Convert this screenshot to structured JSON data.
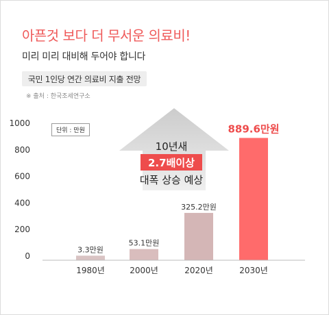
{
  "header": {
    "headline": "아픈것 보다 더 무서운 의료비!",
    "subline": "미리 미리 대비해 두어야 합니다",
    "pill_label": "국민 1인당 연간 의료비 지출 전망",
    "source": "※ 출처 : 한국조세연구소"
  },
  "callout": {
    "line1": "10년새",
    "highlight": "2.7배이상",
    "line3": "대폭 상승 예상"
  },
  "chart_data": {
    "type": "bar",
    "unit_label": "단위 : 만원",
    "categories": [
      "1980년",
      "2000년",
      "2020년",
      "2030년"
    ],
    "values": [
      3.3,
      53.1,
      325.2,
      889.6
    ],
    "data_labels": [
      "3.3만원",
      "53.1만원",
      "325.2만원",
      "889.6만원"
    ],
    "yticks": [
      0,
      200,
      400,
      600,
      800,
      1000
    ],
    "ylim": [
      0,
      1000
    ],
    "grid": false,
    "colors": [
      "#d9c3c3",
      "#d9bdbd",
      "#d4b6b6",
      "#ff6b6b"
    ],
    "highlight_label_color": "#ee4c4c"
  }
}
